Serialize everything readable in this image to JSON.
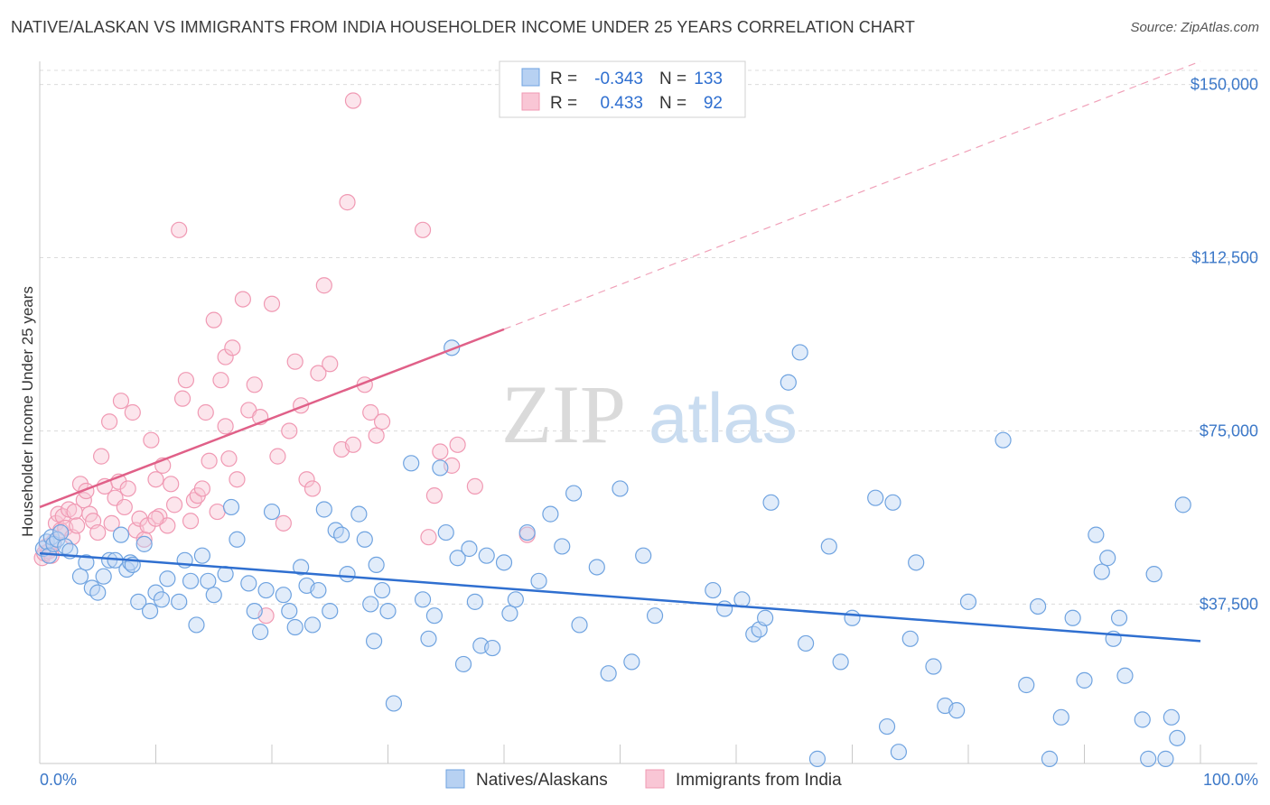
{
  "title": "NATIVE/ALASKAN VS IMMIGRANTS FROM INDIA HOUSEHOLDER INCOME UNDER 25 YEARS CORRELATION CHART",
  "source": "Source: ZipAtlas.com",
  "watermark": {
    "zip": "ZIP",
    "atlas": "atlas"
  },
  "colors": {
    "blue": "#6fa3e0",
    "blue_line": "#2f6fd0",
    "pink": "#f099b3",
    "pink_line": "#e06088",
    "axis_text": "#3c78c8",
    "grid": "#d8d8d8"
  },
  "legend": {
    "rows": [
      {
        "r_label": "R =",
        "r_value": "-0.343",
        "n_label": "N =",
        "n_value": "133"
      },
      {
        "r_label": "R =",
        "r_value": "0.433",
        "n_label": "N =",
        "n_value": "92"
      }
    ]
  },
  "chart_data": {
    "type": "scatter",
    "title": "NATIVE/ALASKAN VS IMMIGRANTS FROM INDIA HOUSEHOLDER INCOME UNDER 25 YEARS CORRELATION CHART",
    "xlabel": "",
    "ylabel": "Householder Income Under 25 years",
    "xlim": [
      0,
      100
    ],
    "ylim": [
      3000,
      155000
    ],
    "x_tick_labels": [
      "0.0%",
      "100.0%"
    ],
    "y_ticks": [
      37500,
      75000,
      112500,
      150000
    ],
    "y_tick_labels": [
      "$37,500",
      "$75,000",
      "$112,500",
      "$150,000"
    ],
    "grid": true,
    "legend_position": "top-center",
    "series": [
      {
        "name": "Natives/Alaskans",
        "color": "#6fa3e0",
        "stats": {
          "R": -0.343,
          "N": 133
        },
        "trend": {
          "x0": 0,
          "y0": 48500,
          "x1": 100,
          "y1": 29500
        },
        "points": [
          [
            0.3,
            49500
          ],
          [
            0.6,
            51000
          ],
          [
            0.8,
            48000
          ],
          [
            1.0,
            52000
          ],
          [
            1.2,
            50500
          ],
          [
            1.5,
            51500
          ],
          [
            1.8,
            53000
          ],
          [
            2.2,
            50000
          ],
          [
            2.6,
            49000
          ],
          [
            3.5,
            43500
          ],
          [
            4.0,
            46500
          ],
          [
            4.5,
            41000
          ],
          [
            5.0,
            40000
          ],
          [
            5.5,
            43500
          ],
          [
            6.0,
            47000
          ],
          [
            6.5,
            47000
          ],
          [
            7.0,
            52500
          ],
          [
            7.5,
            45000
          ],
          [
            7.8,
            46500
          ],
          [
            8.0,
            46000
          ],
          [
            8.5,
            38000
          ],
          [
            9.0,
            50500
          ],
          [
            9.5,
            36000
          ],
          [
            10.0,
            40000
          ],
          [
            10.5,
            38500
          ],
          [
            11.0,
            43000
          ],
          [
            12.0,
            38000
          ],
          [
            12.5,
            47000
          ],
          [
            13.0,
            42500
          ],
          [
            13.5,
            33000
          ],
          [
            14.0,
            48000
          ],
          [
            14.5,
            42500
          ],
          [
            15.0,
            39500
          ],
          [
            16.0,
            44000
          ],
          [
            16.5,
            58500
          ],
          [
            17.0,
            51500
          ],
          [
            18.0,
            42000
          ],
          [
            18.5,
            36000
          ],
          [
            19.0,
            31500
          ],
          [
            19.5,
            40500
          ],
          [
            20.0,
            57500
          ],
          [
            21.0,
            39500
          ],
          [
            21.5,
            36000
          ],
          [
            22.0,
            32500
          ],
          [
            22.5,
            45500
          ],
          [
            23.0,
            41500
          ],
          [
            23.5,
            33000
          ],
          [
            24.0,
            40500
          ],
          [
            24.5,
            58000
          ],
          [
            25.0,
            36000
          ],
          [
            25.5,
            53500
          ],
          [
            26.0,
            52500
          ],
          [
            26.5,
            44000
          ],
          [
            27.5,
            57000
          ],
          [
            28.0,
            51500
          ],
          [
            28.5,
            37500
          ],
          [
            28.8,
            29500
          ],
          [
            29.0,
            46000
          ],
          [
            29.5,
            40500
          ],
          [
            30.0,
            36000
          ],
          [
            30.5,
            16000
          ],
          [
            32.0,
            68000
          ],
          [
            33.0,
            38500
          ],
          [
            33.5,
            30000
          ],
          [
            34.0,
            35000
          ],
          [
            34.5,
            67000
          ],
          [
            35.0,
            53000
          ],
          [
            35.5,
            93000
          ],
          [
            36.0,
            47500
          ],
          [
            36.5,
            24500
          ],
          [
            37.0,
            49500
          ],
          [
            37.5,
            38000
          ],
          [
            38.0,
            28500
          ],
          [
            38.5,
            48000
          ],
          [
            39.0,
            28000
          ],
          [
            40.0,
            46500
          ],
          [
            40.5,
            35500
          ],
          [
            41.0,
            38500
          ],
          [
            42.0,
            53000
          ],
          [
            43.0,
            42500
          ],
          [
            44.0,
            57000
          ],
          [
            45.0,
            50000
          ],
          [
            46.0,
            61500
          ],
          [
            46.5,
            33000
          ],
          [
            48.0,
            45500
          ],
          [
            49.0,
            22500
          ],
          [
            50.0,
            62500
          ],
          [
            51.0,
            25000
          ],
          [
            52.0,
            48000
          ],
          [
            53.0,
            35000
          ],
          [
            58.0,
            40500
          ],
          [
            59.0,
            36500
          ],
          [
            60.5,
            38500
          ],
          [
            61.5,
            31000
          ],
          [
            62.0,
            32000
          ],
          [
            62.5,
            34500
          ],
          [
            63.0,
            59500
          ],
          [
            64.5,
            85500
          ],
          [
            65.5,
            92000
          ],
          [
            66.0,
            29000
          ],
          [
            67.0,
            4000
          ],
          [
            68.0,
            50000
          ],
          [
            69.0,
            25000
          ],
          [
            70.0,
            34500
          ],
          [
            72.0,
            60500
          ],
          [
            73.0,
            11000
          ],
          [
            73.5,
            59500
          ],
          [
            74.0,
            5500
          ],
          [
            75.0,
            30000
          ],
          [
            75.5,
            46500
          ],
          [
            77.0,
            24000
          ],
          [
            78.0,
            15500
          ],
          [
            79.0,
            14500
          ],
          [
            80.0,
            38000
          ],
          [
            83.0,
            73000
          ],
          [
            85.0,
            20000
          ],
          [
            86.0,
            37000
          ],
          [
            87.0,
            4000
          ],
          [
            88.0,
            13000
          ],
          [
            89.0,
            34500
          ],
          [
            90.0,
            21000
          ],
          [
            91.0,
            52500
          ],
          [
            91.5,
            44500
          ],
          [
            92.0,
            47500
          ],
          [
            92.5,
            30000
          ],
          [
            93.0,
            34500
          ],
          [
            93.5,
            22000
          ],
          [
            95.0,
            12500
          ],
          [
            95.5,
            4000
          ],
          [
            96.0,
            44000
          ],
          [
            97.0,
            4000
          ],
          [
            97.5,
            13000
          ],
          [
            98.0,
            8500
          ],
          [
            98.5,
            59000
          ]
        ]
      },
      {
        "name": "Immigrants from India",
        "color": "#f099b3",
        "stats": {
          "R": 0.433,
          "N": 92
        },
        "trend": {
          "x0": 0,
          "y0": 58500,
          "x1": 40,
          "y1": 97000,
          "dash_to_x": 100,
          "dash_to_y": 155000
        },
        "points": [
          [
            0.2,
            47500
          ],
          [
            0.4,
            48500
          ],
          [
            0.6,
            50000
          ],
          [
            0.8,
            49000
          ],
          [
            1.0,
            48000
          ],
          [
            1.2,
            51000
          ],
          [
            1.4,
            55000
          ],
          [
            1.6,
            57000
          ],
          [
            1.8,
            53500
          ],
          [
            2.0,
            56500
          ],
          [
            2.2,
            54000
          ],
          [
            2.5,
            58000
          ],
          [
            2.8,
            52000
          ],
          [
            3.0,
            57500
          ],
          [
            3.2,
            54500
          ],
          [
            3.5,
            63500
          ],
          [
            3.8,
            60000
          ],
          [
            4.0,
            62000
          ],
          [
            4.3,
            57000
          ],
          [
            4.6,
            55500
          ],
          [
            5.0,
            53000
          ],
          [
            5.3,
            69500
          ],
          [
            5.6,
            63000
          ],
          [
            6.0,
            77000
          ],
          [
            6.2,
            55000
          ],
          [
            6.5,
            60500
          ],
          [
            6.8,
            64000
          ],
          [
            7.0,
            81500
          ],
          [
            7.3,
            58500
          ],
          [
            7.6,
            62500
          ],
          [
            8.0,
            79000
          ],
          [
            8.3,
            53500
          ],
          [
            8.6,
            56000
          ],
          [
            9.0,
            51500
          ],
          [
            9.3,
            54500
          ],
          [
            9.6,
            73000
          ],
          [
            10.0,
            64500
          ],
          [
            10.3,
            56500
          ],
          [
            10.6,
            67500
          ],
          [
            11.0,
            54500
          ],
          [
            11.3,
            63500
          ],
          [
            11.6,
            59000
          ],
          [
            12.0,
            118500
          ],
          [
            12.3,
            82000
          ],
          [
            12.6,
            86000
          ],
          [
            13.0,
            55500
          ],
          [
            13.3,
            60000
          ],
          [
            13.6,
            61000
          ],
          [
            14.0,
            62500
          ],
          [
            14.3,
            79000
          ],
          [
            14.6,
            68500
          ],
          [
            15.0,
            99000
          ],
          [
            15.3,
            57500
          ],
          [
            15.6,
            86000
          ],
          [
            16.0,
            91000
          ],
          [
            16.3,
            69000
          ],
          [
            16.6,
            93000
          ],
          [
            17.0,
            64500
          ],
          [
            17.5,
            103500
          ],
          [
            18.0,
            79500
          ],
          [
            18.5,
            85000
          ],
          [
            19.0,
            78000
          ],
          [
            19.5,
            35000
          ],
          [
            20.0,
            102500
          ],
          [
            20.5,
            69500
          ],
          [
            21.0,
            55000
          ],
          [
            21.5,
            75000
          ],
          [
            22.0,
            90000
          ],
          [
            22.5,
            80500
          ],
          [
            23.0,
            64500
          ],
          [
            23.5,
            62500
          ],
          [
            24.0,
            87500
          ],
          [
            24.5,
            106500
          ],
          [
            25.0,
            89500
          ],
          [
            26.0,
            71000
          ],
          [
            26.5,
            124500
          ],
          [
            27.0,
            72000
          ],
          [
            28.0,
            85000
          ],
          [
            28.5,
            79000
          ],
          [
            29.0,
            74000
          ],
          [
            29.5,
            77000
          ],
          [
            33.0,
            118500
          ],
          [
            27.0,
            146500
          ],
          [
            34.0,
            61000
          ],
          [
            33.5,
            52000
          ],
          [
            34.5,
            70500
          ],
          [
            35.5,
            67500
          ],
          [
            36.0,
            72000
          ],
          [
            37.5,
            63000
          ],
          [
            42.0,
            52500
          ],
          [
            10.0,
            56000
          ],
          [
            16.0,
            76000
          ]
        ]
      }
    ]
  },
  "bottom_legend": {
    "items": [
      {
        "label": "Natives/Alaskans"
      },
      {
        "label": "Immigrants from India"
      }
    ]
  }
}
